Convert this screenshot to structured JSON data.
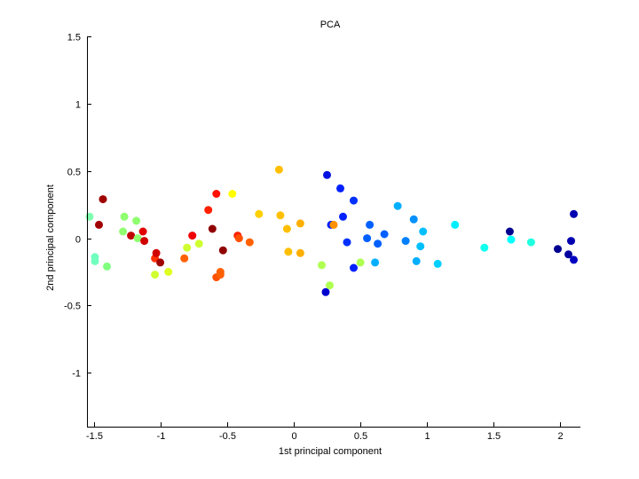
{
  "chart_data": {
    "type": "scatter",
    "title": "PCA",
    "xlabel": "1st principal component",
    "ylabel": "2nd principal component",
    "xlim": [
      -1.55,
      2.15
    ],
    "ylim": [
      -1.4,
      1.5
    ],
    "xticks": [
      -1.5,
      -1,
      -0.5,
      0,
      0.5,
      1,
      1.5,
      2
    ],
    "xtick_labels": [
      "-1.5",
      "-1",
      "-0.5",
      "0",
      "0.5",
      "1",
      "1.5",
      "2"
    ],
    "yticks": [
      -1,
      -0.5,
      0,
      0.5,
      1,
      1.5
    ],
    "ytick_labels": [
      "-1",
      "-0.5",
      "0",
      "0.5",
      "1",
      "1.5"
    ],
    "grid": false,
    "legend": "none",
    "points": [
      {
        "x": -1.53,
        "y": 0.16,
        "color": "#7fffaf"
      },
      {
        "x": -1.49,
        "y": -0.14,
        "color": "#70ffbf"
      },
      {
        "x": -1.49,
        "y": -0.17,
        "color": "#70ffbf"
      },
      {
        "x": -1.46,
        "y": 0.1,
        "color": "#a00000"
      },
      {
        "x": -1.43,
        "y": 0.29,
        "color": "#a00000"
      },
      {
        "x": -1.4,
        "y": -0.21,
        "color": "#80ff80"
      },
      {
        "x": -1.27,
        "y": 0.16,
        "color": "#8fff70"
      },
      {
        "x": -1.28,
        "y": 0.05,
        "color": "#8fff70"
      },
      {
        "x": -1.22,
        "y": 0.02,
        "color": "#c00000"
      },
      {
        "x": -1.18,
        "y": 0.13,
        "color": "#8fff70"
      },
      {
        "x": -1.17,
        "y": 0.0,
        "color": "#8fff70"
      },
      {
        "x": -1.13,
        "y": 0.05,
        "color": "#e00000"
      },
      {
        "x": -1.12,
        "y": -0.02,
        "color": "#d00000"
      },
      {
        "x": -1.04,
        "y": -0.15,
        "color": "#ff3000"
      },
      {
        "x": -1.03,
        "y": -0.11,
        "color": "#d00000"
      },
      {
        "x": -1.04,
        "y": -0.27,
        "color": "#cfff30"
      },
      {
        "x": -1.0,
        "y": -0.18,
        "color": "#a00000"
      },
      {
        "x": -0.94,
        "y": -0.25,
        "color": "#dfff20"
      },
      {
        "x": -0.82,
        "y": -0.15,
        "color": "#ff6000"
      },
      {
        "x": -0.8,
        "y": -0.07,
        "color": "#cfff30"
      },
      {
        "x": -0.76,
        "y": 0.02,
        "color": "#f00000"
      },
      {
        "x": -0.71,
        "y": -0.04,
        "color": "#cfff30"
      },
      {
        "x": -0.64,
        "y": 0.21,
        "color": "#ff2000"
      },
      {
        "x": -0.61,
        "y": 0.07,
        "color": "#900000"
      },
      {
        "x": -0.58,
        "y": 0.33,
        "color": "#ff1000"
      },
      {
        "x": -0.58,
        "y": -0.29,
        "color": "#ff5000"
      },
      {
        "x": -0.55,
        "y": -0.27,
        "color": "#ff6000"
      },
      {
        "x": -0.55,
        "y": -0.25,
        "color": "#ff6000"
      },
      {
        "x": -0.53,
        "y": -0.09,
        "color": "#900000"
      },
      {
        "x": -0.46,
        "y": 0.33,
        "color": "#ffff00"
      },
      {
        "x": -0.42,
        "y": 0.02,
        "color": "#ff2000"
      },
      {
        "x": -0.41,
        "y": 0.0,
        "color": "#ff5000"
      },
      {
        "x": -0.33,
        "y": -0.03,
        "color": "#ff6000"
      },
      {
        "x": -0.26,
        "y": 0.18,
        "color": "#ffcf00"
      },
      {
        "x": -0.11,
        "y": 0.51,
        "color": "#ffbf00"
      },
      {
        "x": -0.1,
        "y": 0.17,
        "color": "#ffbf00"
      },
      {
        "x": -0.05,
        "y": 0.07,
        "color": "#ffbf00"
      },
      {
        "x": -0.04,
        "y": -0.1,
        "color": "#ffbf00"
      },
      {
        "x": 0.05,
        "y": 0.11,
        "color": "#ffaf00"
      },
      {
        "x": 0.05,
        "y": -0.11,
        "color": "#ffaf00"
      },
      {
        "x": 0.21,
        "y": -0.2,
        "color": "#afff50"
      },
      {
        "x": 0.25,
        "y": 0.47,
        "color": "#0010e0"
      },
      {
        "x": 0.24,
        "y": -0.4,
        "color": "#0000d0"
      },
      {
        "x": 0.27,
        "y": -0.35,
        "color": "#afff50"
      },
      {
        "x": 0.28,
        "y": 0.1,
        "color": "#0020ff"
      },
      {
        "x": 0.3,
        "y": 0.1,
        "color": "#ff9000"
      },
      {
        "x": 0.35,
        "y": 0.37,
        "color": "#0020ff"
      },
      {
        "x": 0.37,
        "y": 0.16,
        "color": "#0020ff"
      },
      {
        "x": 0.4,
        "y": -0.03,
        "color": "#0030ff"
      },
      {
        "x": 0.45,
        "y": 0.28,
        "color": "#0030ff"
      },
      {
        "x": 0.45,
        "y": -0.22,
        "color": "#0020ff"
      },
      {
        "x": 0.5,
        "y": -0.18,
        "color": "#afff50"
      },
      {
        "x": 0.55,
        "y": 0.0,
        "color": "#0060ff"
      },
      {
        "x": 0.57,
        "y": 0.1,
        "color": "#0060ff"
      },
      {
        "x": 0.61,
        "y": -0.18,
        "color": "#00afff"
      },
      {
        "x": 0.63,
        "y": -0.04,
        "color": "#0060ff"
      },
      {
        "x": 0.68,
        "y": 0.03,
        "color": "#0060ff"
      },
      {
        "x": 0.78,
        "y": 0.24,
        "color": "#00afff"
      },
      {
        "x": 0.84,
        "y": -0.02,
        "color": "#0080ff"
      },
      {
        "x": 0.9,
        "y": 0.14,
        "color": "#0090ff"
      },
      {
        "x": 0.92,
        "y": -0.17,
        "color": "#00afff"
      },
      {
        "x": 0.95,
        "y": -0.06,
        "color": "#00bfff"
      },
      {
        "x": 0.97,
        "y": 0.05,
        "color": "#00bfff"
      },
      {
        "x": 1.08,
        "y": -0.19,
        "color": "#00cfff"
      },
      {
        "x": 1.21,
        "y": 0.1,
        "color": "#00efff"
      },
      {
        "x": 1.43,
        "y": -0.07,
        "color": "#10ffef"
      },
      {
        "x": 1.62,
        "y": 0.05,
        "color": "#000090"
      },
      {
        "x": 1.63,
        "y": -0.01,
        "color": "#00ffff"
      },
      {
        "x": 1.78,
        "y": -0.03,
        "color": "#20ffdf"
      },
      {
        "x": 1.98,
        "y": -0.08,
        "color": "#000090"
      },
      {
        "x": 2.06,
        "y": -0.12,
        "color": "#0000a0"
      },
      {
        "x": 2.08,
        "y": -0.02,
        "color": "#0000b0"
      },
      {
        "x": 2.1,
        "y": 0.18,
        "color": "#0000b0"
      },
      {
        "x": 2.1,
        "y": -0.16,
        "color": "#0000c0"
      }
    ]
  }
}
